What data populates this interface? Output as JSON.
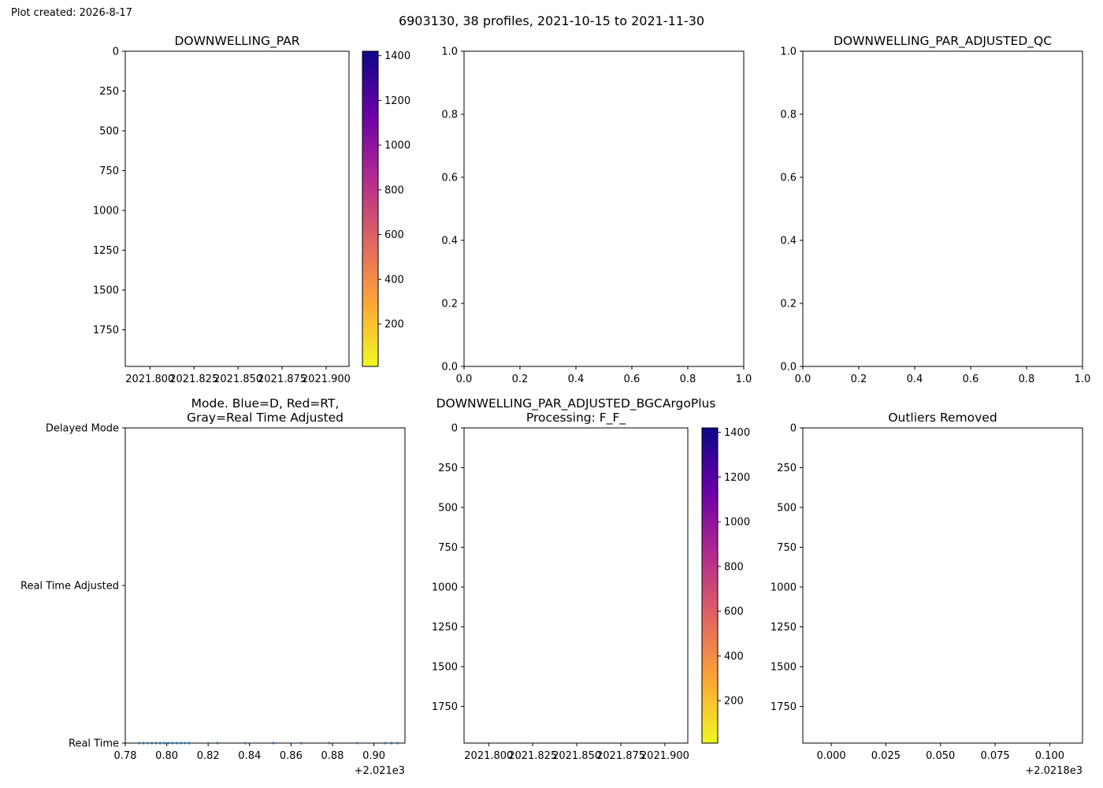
{
  "figure": {
    "stamp": "Plot created: 2026-8-17",
    "suptitle": "6903130, 38 profiles, 2021-10-15 to 2021-11-30"
  },
  "colorbar": {
    "colormap": "plasma_r",
    "stops": [
      "#f0f921",
      "#fca636",
      "#e16462",
      "#b12a90",
      "#6a00a8",
      "#0d0887"
    ]
  },
  "chart_data": [
    {
      "id": "raw",
      "type": "scatter",
      "title": "DOWNWELLING_PAR",
      "y_inverted": true,
      "ylim": [
        1980,
        0
      ],
      "xlim": [
        2021.786,
        2021.913
      ],
      "yticks": [
        0,
        250,
        500,
        750,
        1000,
        1250,
        1500,
        1750
      ],
      "xticks": [
        2021.8,
        2021.825,
        2021.85,
        2021.875,
        2021.9
      ],
      "xtick_labels": [
        "2021.800",
        "2021.825",
        "2021.850",
        "2021.875",
        "2021.900"
      ],
      "colorbar": {
        "range": [
          10,
          1420
        ],
        "ticks": [
          200,
          400,
          600,
          800,
          1000,
          1200,
          1400
        ]
      },
      "points": []
    },
    {
      "id": "empty",
      "type": "scatter",
      "title": "",
      "xlim": [
        0,
        1
      ],
      "ylim": [
        0,
        1
      ],
      "xticks": [
        0.0,
        0.2,
        0.4,
        0.6,
        0.8,
        1.0
      ],
      "yticks": [
        0.0,
        0.2,
        0.4,
        0.6,
        0.8,
        1.0
      ],
      "xtick_labels": [
        "0.0",
        "0.2",
        "0.4",
        "0.6",
        "0.8",
        "1.0"
      ],
      "ytick_labels": [
        "0.0",
        "0.2",
        "0.4",
        "0.6",
        "0.8",
        "1.0"
      ],
      "points": []
    },
    {
      "id": "qc",
      "type": "scatter",
      "title": "DOWNWELLING_PAR_ADJUSTED_QC",
      "xlim": [
        0,
        1
      ],
      "ylim": [
        0,
        1
      ],
      "xticks": [
        0.0,
        0.2,
        0.4,
        0.6,
        0.8,
        1.0
      ],
      "yticks": [
        0.0,
        0.2,
        0.4,
        0.6,
        0.8,
        1.0
      ],
      "xtick_labels": [
        "0.0",
        "0.2",
        "0.4",
        "0.6",
        "0.8",
        "1.0"
      ],
      "ytick_labels": [
        "0.0",
        "0.2",
        "0.4",
        "0.6",
        "0.8",
        "1.0"
      ],
      "points": []
    },
    {
      "id": "mode",
      "type": "scatter",
      "title_lines": [
        "Mode. Blue=D, Red=RT,",
        "Gray=Real Time Adjusted"
      ],
      "xlim": [
        2021.78,
        2021.915
      ],
      "ylim": [
        0,
        2
      ],
      "xticks": [
        2021.78,
        2021.8,
        2021.82,
        2021.84,
        2021.86,
        2021.88,
        2021.9
      ],
      "xtick_labels": [
        "0.78",
        "0.80",
        "0.82",
        "0.84",
        "0.86",
        "0.88",
        "0.90"
      ],
      "x_offset_label": "+2.021e3",
      "yticks": [
        0,
        1,
        2
      ],
      "ytick_labels": [
        "Real Time",
        "Real Time Adjusted",
        "Delayed Mode"
      ],
      "point_color": "#1f77b4",
      "x": [
        2021.7868,
        2021.7888,
        2021.7908,
        2021.7928,
        2021.7948,
        2021.7968,
        2021.7988,
        2021.8008,
        2021.8028,
        2021.8048,
        2021.8068,
        2021.8088,
        2021.8108,
        2021.8245,
        2021.838,
        2021.8515,
        2021.865,
        2021.8785,
        2021.892,
        2021.9055,
        2021.9085,
        2021.9115
      ],
      "y": [
        0,
        0,
        0,
        0,
        0,
        0,
        0,
        0,
        0,
        0,
        0,
        0,
        0,
        0,
        0,
        0,
        0,
        0,
        0,
        0,
        0,
        0
      ]
    },
    {
      "id": "bgc",
      "type": "scatter",
      "title_lines": [
        "DOWNWELLING_PAR_ADJUSTED_BGCArgoPlus",
        "Processing: F_F_"
      ],
      "y_inverted": true,
      "ylim": [
        1980,
        0
      ],
      "xlim": [
        2021.786,
        2021.913
      ],
      "yticks": [
        0,
        250,
        500,
        750,
        1000,
        1250,
        1500,
        1750
      ],
      "xticks": [
        2021.8,
        2021.825,
        2021.85,
        2021.875,
        2021.9
      ],
      "xtick_labels": [
        "2021.800",
        "2021.825",
        "2021.850",
        "2021.875",
        "2021.900"
      ],
      "colorbar": {
        "range": [
          10,
          1420
        ],
        "ticks": [
          200,
          400,
          600,
          800,
          1000,
          1200,
          1400
        ]
      },
      "points": []
    },
    {
      "id": "outliers",
      "type": "scatter",
      "title": "Outliers Removed",
      "y_inverted": true,
      "ylim": [
        1980,
        0
      ],
      "xlim": [
        2021.787,
        2021.915
      ],
      "yticks": [
        0,
        250,
        500,
        750,
        1000,
        1250,
        1500,
        1750
      ],
      "xticks": [
        2021.8,
        2021.825,
        2021.85,
        2021.875,
        2021.9
      ],
      "xtick_labels": [
        "0.000",
        "0.025",
        "0.050",
        "0.075",
        "0.100"
      ],
      "x_offset_label": "+2.0218e3",
      "points": []
    }
  ]
}
